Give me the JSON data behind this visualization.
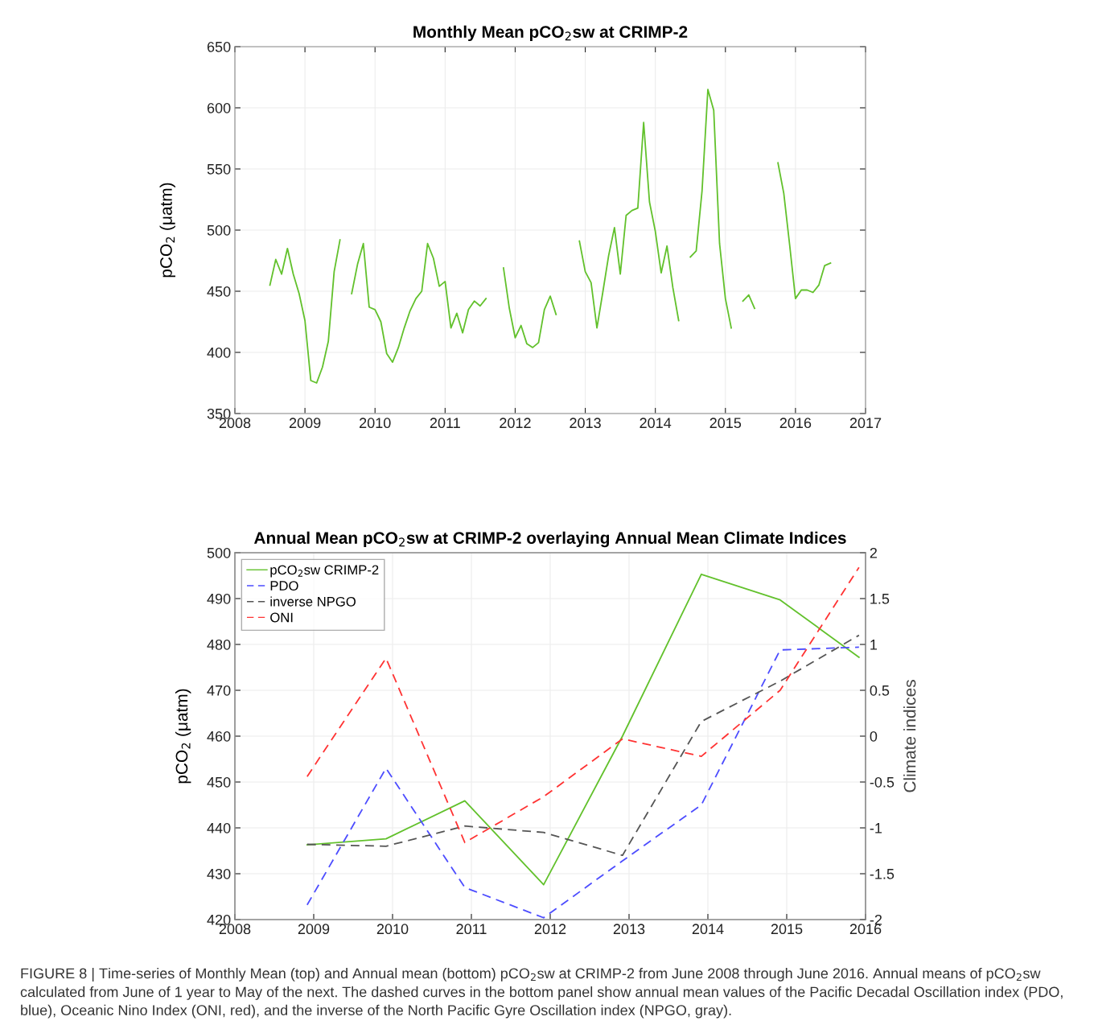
{
  "chart_data": [
    {
      "type": "line",
      "title": "Monthly Mean pCO$_{2}$sw at CRIMP-2",
      "ylabel": "pCO$_{2}$ (μatm)",
      "x": [
        "2008-07",
        "2008-08",
        "2008-09",
        "2008-10",
        "2008-11",
        "2008-12",
        "2009-01",
        "2009-02",
        "2009-03",
        "2009-04",
        "2009-05",
        "2009-06",
        "2009-07",
        "2009-08",
        "2009-09",
        "2009-10",
        "2009-11",
        "2009-12",
        "2010-01",
        "2010-02",
        "2010-03",
        "2010-04",
        "2010-05",
        "2010-06",
        "2010-07",
        "2010-08",
        "2010-09",
        "2010-10",
        "2010-11",
        "2010-12",
        "2011-01",
        "2011-02",
        "2011-03",
        "2011-04",
        "2011-05",
        "2011-06",
        "2011-07",
        "2011-08",
        "2011-09",
        "2011-10",
        "2011-11",
        "2011-12",
        "2012-01",
        "2012-02",
        "2012-03",
        "2012-04",
        "2012-05",
        "2012-06",
        "2012-07",
        "2012-08",
        "2012-09",
        "2012-10",
        "2012-11",
        "2012-12",
        "2013-01",
        "2013-02",
        "2013-03",
        "2013-04",
        "2013-05",
        "2013-06",
        "2013-07",
        "2013-08",
        "2013-09",
        "2013-10",
        "2013-11",
        "2013-12",
        "2014-01",
        "2014-02",
        "2014-03",
        "2014-04",
        "2014-05",
        "2014-06",
        "2014-07",
        "2014-08",
        "2014-09",
        "2014-10",
        "2014-11",
        "2014-12",
        "2015-01",
        "2015-02",
        "2015-03",
        "2015-04",
        "2015-05",
        "2015-06",
        "2015-07",
        "2015-08",
        "2015-09",
        "2015-10",
        "2015-11",
        "2015-12",
        "2016-01",
        "2016-02",
        "2016-03",
        "2016-04",
        "2016-05",
        "2016-06",
        "2016-07"
      ],
      "series": [
        {
          "color": "#62c12c",
          "line_style": "solid",
          "values": [
            455,
            476,
            464,
            485,
            464,
            448,
            426,
            377,
            375,
            388,
            409,
            466,
            492,
            null,
            448,
            472,
            489,
            437,
            435,
            425,
            399,
            392,
            404,
            420,
            434,
            444,
            450,
            489,
            477,
            454,
            458,
            420,
            432,
            416,
            435,
            442,
            438,
            444,
            null,
            null,
            469,
            436,
            412,
            422,
            407,
            404,
            408,
            435,
            446,
            431,
            null,
            null,
            null,
            491,
            466,
            457,
            420,
            449,
            479,
            502,
            464,
            512,
            516,
            518,
            588,
            523,
            499,
            465,
            487,
            453,
            426,
            null,
            478,
            483,
            532,
            615,
            598,
            489,
            444,
            420,
            null,
            442,
            447,
            436,
            null,
            null,
            null,
            555,
            530,
            488,
            444,
            451,
            451,
            449,
            455,
            471,
            473
          ]
        }
      ],
      "xlim": [
        "2008",
        "2017"
      ],
      "xticks": [
        "2008",
        "2009",
        "2010",
        "2011",
        "2012",
        "2013",
        "2014",
        "2015",
        "2016",
        "2017"
      ],
      "ylim": [
        350,
        650
      ],
      "yticks": [
        350,
        400,
        450,
        500,
        550,
        600,
        650
      ],
      "grid": true,
      "marker": "none",
      "legend": false
    },
    {
      "type": "line",
      "title": "Annual Mean pCO$_{2}$sw at CRIMP-2 overlaying Annual Mean Climate Indices",
      "ylabel": "pCO$_{2}$ (μatm)",
      "y2label": "Climate indices",
      "x": [
        "2008-12",
        "2009-12",
        "2010-12",
        "2011-12",
        "2012-12",
        "2013-12",
        "2014-12",
        "2015-12"
      ],
      "series": [
        {
          "name": "pCO$_{2}$sw CRIMP-2",
          "color": "#62c12c",
          "line_style": "solid",
          "values": [
            436.3,
            437.6,
            445.9,
            427.6,
            460.0,
            495.3,
            489.7,
            477.2
          ]
        },
        {
          "name": "PDO",
          "color": "#4d4dff",
          "line_style": "dashed",
          "axis": "y2",
          "values": [
            -1.84,
            -0.35,
            -1.65,
            -1.98,
            -1.36,
            -0.75,
            0.94,
            0.97
          ]
        },
        {
          "name": "inverse NPGO",
          "color": "#555555",
          "line_style": "dashed",
          "axis": "y2",
          "values": [
            -1.18,
            -1.2,
            -0.98,
            -1.05,
            -1.3,
            0.16,
            0.6,
            1.1
          ]
        },
        {
          "name": "ONI",
          "color": "#ff3333",
          "line_style": "dashed",
          "axis": "y2",
          "values": [
            -0.44,
            0.85,
            -1.16,
            -0.66,
            -0.03,
            -0.22,
            0.5,
            1.84
          ]
        }
      ],
      "xlim": [
        "2008",
        "2016"
      ],
      "xticks": [
        "2008",
        "2009",
        "2010",
        "2011",
        "2012",
        "2013",
        "2014",
        "2015",
        "2016"
      ],
      "ylim": [
        420,
        500
      ],
      "yticks": [
        420,
        430,
        440,
        450,
        460,
        470,
        480,
        490,
        500
      ],
      "y2lim": [
        -2,
        2
      ],
      "y2ticks": [
        -2,
        -1.5,
        -1,
        -0.5,
        0,
        0.5,
        1,
        1.5,
        2
      ],
      "grid": true,
      "marker": "none",
      "legend": "top left",
      "annotations": [
        "FIGURE 8 | Time-series of Monthly Mean (top) and Annual mean (bottom) pCO$_{2}$sw at CRIMP-2 from June 2008 through June 2016. Annual means of pCO$_{2}$sw calculated from June of 1 year to May of the next. The dashed curves in the bottom panel show annual mean values of the Pacific Decadal Oscillation index (PDO, blue), Oceanic Nino Index (ONI, red), and the inverse of the North Pacific Gyre Oscillation index (NPGO, gray)."
      ]
    }
  ]
}
